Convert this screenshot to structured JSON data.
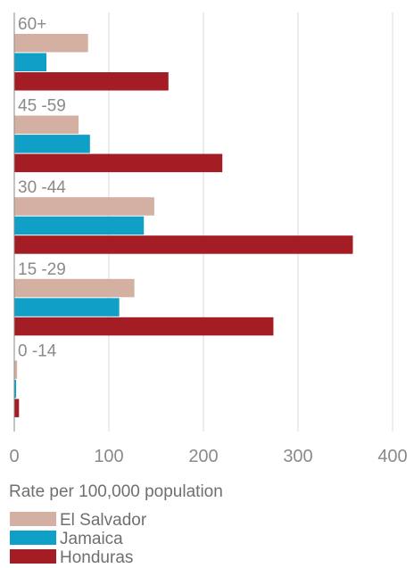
{
  "chart_data": {
    "type": "bar",
    "orientation": "horizontal",
    "categories": [
      "60+",
      "45 -59",
      "30 -44",
      "15 -29",
      "0 -14"
    ],
    "series": [
      {
        "name": "El Salvador",
        "color": "#d4b0a2",
        "values": [
          78,
          68,
          148,
          127,
          3
        ]
      },
      {
        "name": "Jamaica",
        "color": "#0f9fc7",
        "values": [
          34,
          80,
          137,
          111,
          2
        ]
      },
      {
        "name": "Honduras",
        "color": "#a51d24",
        "values": [
          163,
          220,
          358,
          274,
          5
        ]
      }
    ],
    "xlabel": "Rate per 100,000 population",
    "xlim": [
      0,
      400
    ],
    "xticks": [
      0,
      100,
      200,
      300,
      400
    ],
    "grid": "vertical",
    "legend_position": "bottom-left"
  }
}
